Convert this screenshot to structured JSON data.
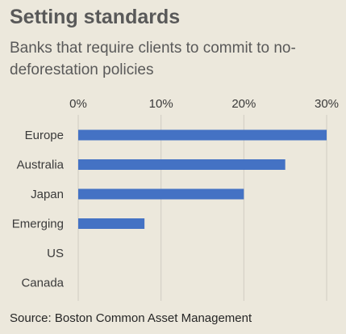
{
  "chart_data": {
    "type": "bar",
    "title": "Setting standards",
    "subtitle": "Banks that require clients to commit to no-deforestation policies",
    "categories": [
      "Europe",
      "Australia",
      "Japan",
      "Emerging",
      "US",
      "Canada"
    ],
    "values": [
      30,
      25,
      20,
      8,
      0,
      0
    ],
    "xlim": [
      0,
      30
    ],
    "xticks": [
      0,
      10,
      20,
      30
    ],
    "tick_format": "{v}%",
    "orientation": "horizontal",
    "grid": true,
    "source": "Source: Boston Common Asset Management",
    "colors": {
      "bar": "#4472c4",
      "grid": "#d0ccc2",
      "background": "#ece8dc",
      "title": "#595959"
    }
  }
}
